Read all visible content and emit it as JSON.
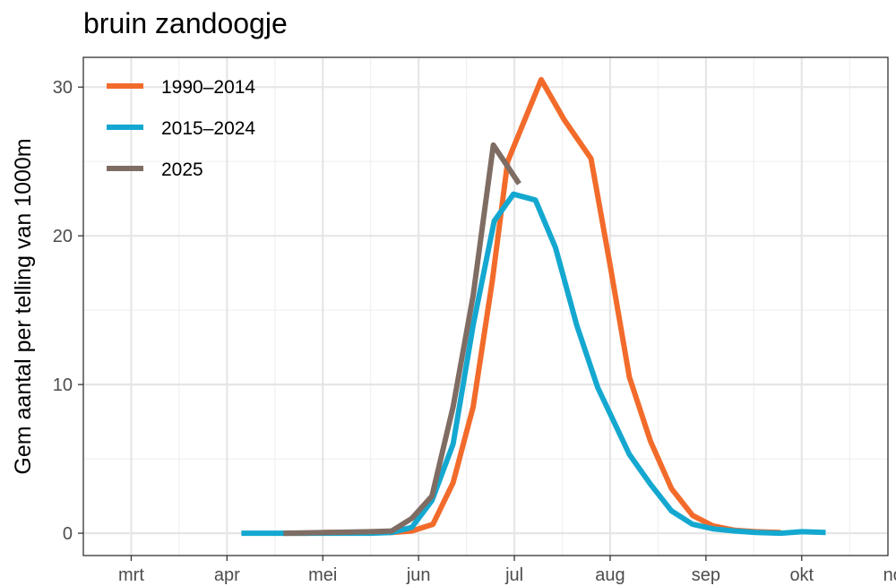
{
  "chart_data": {
    "type": "line",
    "title": "bruin zandoogje",
    "ylabel": "Gem aantal per telling van 1000m",
    "xlabel": "",
    "x_ticks": [
      "mrt",
      "apr",
      "mei",
      "jun",
      "jul",
      "aug",
      "sep",
      "okt",
      "nov"
    ],
    "y_ticks": [
      0,
      10,
      20,
      30
    ],
    "xlim": [
      2.5,
      10.9
    ],
    "ylim": [
      -1.5,
      32
    ],
    "grid": true,
    "legend_position": "top-left",
    "series": [
      {
        "name": "1990–2014",
        "color": "#f26b2b",
        "points": [
          [
            4.59,
            0
          ],
          [
            4.83,
            0
          ],
          [
            5.05,
            0.05
          ],
          [
            5.28,
            0.05
          ],
          [
            5.5,
            0.05
          ],
          [
            5.72,
            0.05
          ],
          [
            5.93,
            0.15
          ],
          [
            6.15,
            0.6
          ],
          [
            6.36,
            3.4
          ],
          [
            6.57,
            8.5
          ],
          [
            6.77,
            17
          ],
          [
            6.93,
            25
          ],
          [
            7.28,
            30.5
          ],
          [
            7.52,
            27.8
          ],
          [
            7.8,
            25.2
          ],
          [
            8.0,
            18
          ],
          [
            8.2,
            10.5
          ],
          [
            8.42,
            6.2
          ],
          [
            8.64,
            3
          ],
          [
            8.86,
            1.2
          ],
          [
            9.07,
            0.5
          ],
          [
            9.3,
            0.2
          ],
          [
            9.52,
            0.1
          ],
          [
            9.78,
            0.05
          ]
        ]
      },
      {
        "name": "2015–2024",
        "color": "#14a8d0",
        "points": [
          [
            4.15,
            0
          ],
          [
            4.59,
            0
          ],
          [
            5.05,
            0
          ],
          [
            5.5,
            0
          ],
          [
            5.72,
            0.05
          ],
          [
            5.93,
            0.4
          ],
          [
            6.14,
            2.2
          ],
          [
            6.36,
            6
          ],
          [
            6.57,
            14
          ],
          [
            6.79,
            21
          ],
          [
            6.99,
            22.8
          ],
          [
            7.22,
            22.4
          ],
          [
            7.43,
            19.2
          ],
          [
            7.65,
            14
          ],
          [
            7.87,
            9.8
          ],
          [
            8.2,
            5.3
          ],
          [
            8.42,
            3.3
          ],
          [
            8.64,
            1.5
          ],
          [
            8.86,
            0.6
          ],
          [
            9.07,
            0.3
          ],
          [
            9.3,
            0.15
          ],
          [
            9.52,
            0.05
          ],
          [
            9.78,
            0
          ],
          [
            10.0,
            0.1
          ],
          [
            10.25,
            0.05
          ]
        ]
      },
      {
        "name": "2025",
        "color": "#7f6d64",
        "points": [
          [
            4.59,
            0
          ],
          [
            5.05,
            0.05
          ],
          [
            5.5,
            0.1
          ],
          [
            5.72,
            0.15
          ],
          [
            5.93,
            1
          ],
          [
            6.14,
            2.5
          ],
          [
            6.36,
            8.5
          ],
          [
            6.57,
            16
          ],
          [
            6.78,
            26.1
          ],
          [
            7.05,
            23.5
          ]
        ]
      }
    ]
  }
}
